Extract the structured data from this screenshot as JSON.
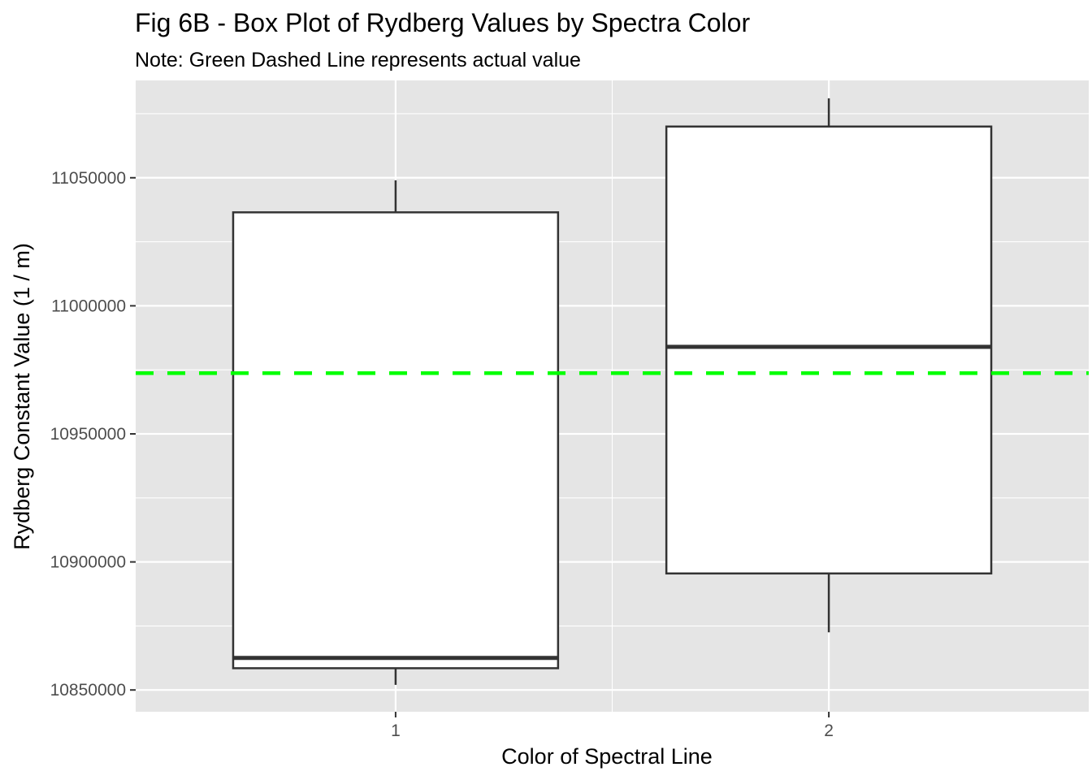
{
  "chart_data": {
    "type": "box",
    "title": "Fig 6B - Box Plot of Rydberg Values by Spectra Color",
    "subtitle": "Note: Green Dashed Line represents actual value",
    "xlabel": "Color of Spectral Line",
    "ylabel": "Rydberg Constant Value (1 / m)",
    "categories": [
      "1",
      "2"
    ],
    "y_ticks": [
      10850000,
      10900000,
      10950000,
      11000000,
      11050000
    ],
    "y_tick_labels": [
      "10850000",
      "10900000",
      "10950000",
      "11000000",
      "11050000"
    ],
    "ylim": [
      10841500,
      11088000
    ],
    "grid": true,
    "background": "#e5e5e5",
    "gridline_color": "#ffffff",
    "box_fill": "#ffffff",
    "box_stroke": "#333333",
    "boxes": [
      {
        "category": "1",
        "min": 10852000,
        "q1": 10858500,
        "median": 10862500,
        "q3": 11036500,
        "max": 11049000
      },
      {
        "category": "2",
        "min": 10872500,
        "q1": 10895500,
        "median": 10984000,
        "q3": 11070000,
        "max": 11081000
      }
    ],
    "reference_line": {
      "value": 10973700,
      "color": "#00ff00",
      "style": "dashed"
    }
  }
}
